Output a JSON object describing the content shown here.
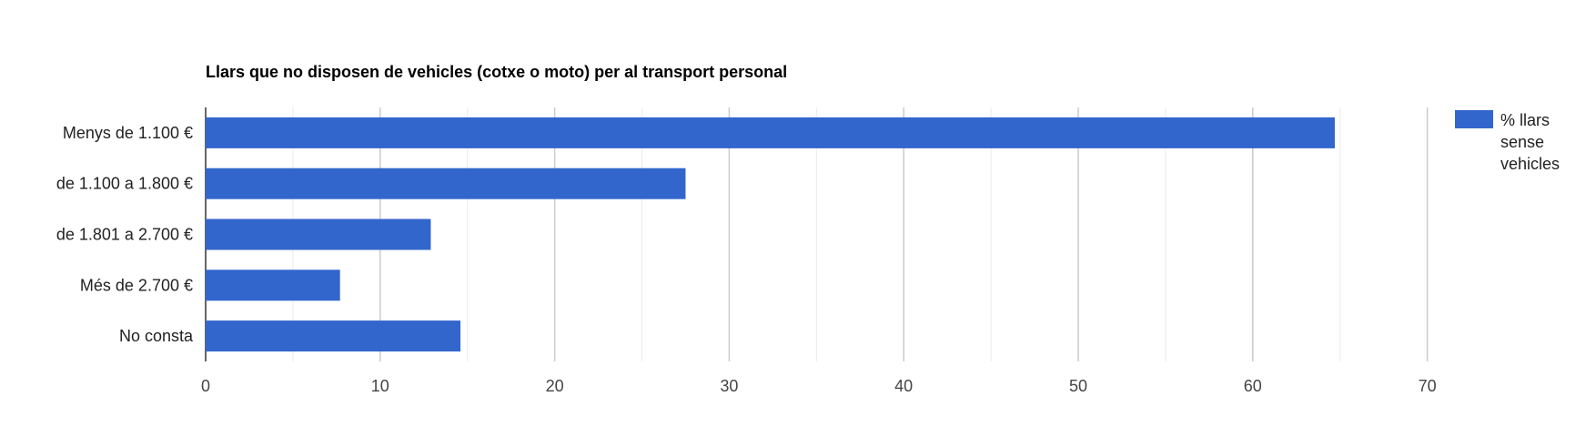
{
  "chart_data": {
    "type": "bar",
    "orientation": "horizontal",
    "title": "Llars que no disposen de vehicles (cotxe o moto) per al transport personal",
    "categories": [
      "Menys de 1.100 €",
      "de 1.100 a 1.800 €",
      "de 1.801 a 2.700 €",
      "Més de 2.700 €",
      "No consta"
    ],
    "series": [
      {
        "name": "% llars sense vehicles",
        "values": [
          64.7,
          27.5,
          12.9,
          7.7,
          14.6
        ],
        "color": "#3366cc"
      }
    ],
    "xlabel": "",
    "ylabel": "",
    "xlim": [
      0,
      70
    ],
    "xticks": [
      "0",
      "10",
      "20",
      "30",
      "40",
      "50",
      "60",
      "70"
    ],
    "grid": true,
    "legend": {
      "position": "right",
      "lines": [
        "% llars",
        "sense",
        "vehicles"
      ]
    }
  }
}
